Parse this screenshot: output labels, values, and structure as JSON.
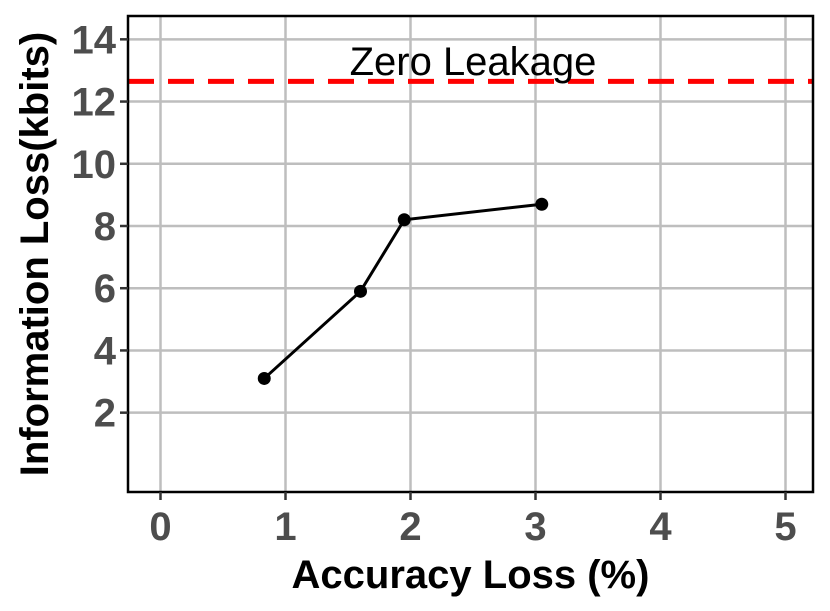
{
  "chart_data": {
    "type": "line",
    "xlabel": "Accuracy Loss (%)",
    "ylabel": "Information Loss(kbits)",
    "xlim": [
      -0.26,
      5.22
    ],
    "ylim": [
      -0.55,
      14.75
    ],
    "x_ticks": [
      0,
      1,
      2,
      3,
      4,
      5
    ],
    "y_ticks": [
      2,
      4,
      6,
      8,
      10,
      12,
      14
    ],
    "grid": true,
    "series": [
      {
        "x": [
          0.83,
          1.6,
          1.95,
          3.05
        ],
        "y": [
          3.1,
          5.9,
          8.2,
          8.7
        ],
        "color": "#000000"
      }
    ],
    "reference_line": {
      "y": 12.65,
      "color": "#ff0000",
      "style": "dashed"
    },
    "annotation": {
      "text": "Zero Leakage",
      "x": 2.5,
      "y": 13.3
    }
  }
}
